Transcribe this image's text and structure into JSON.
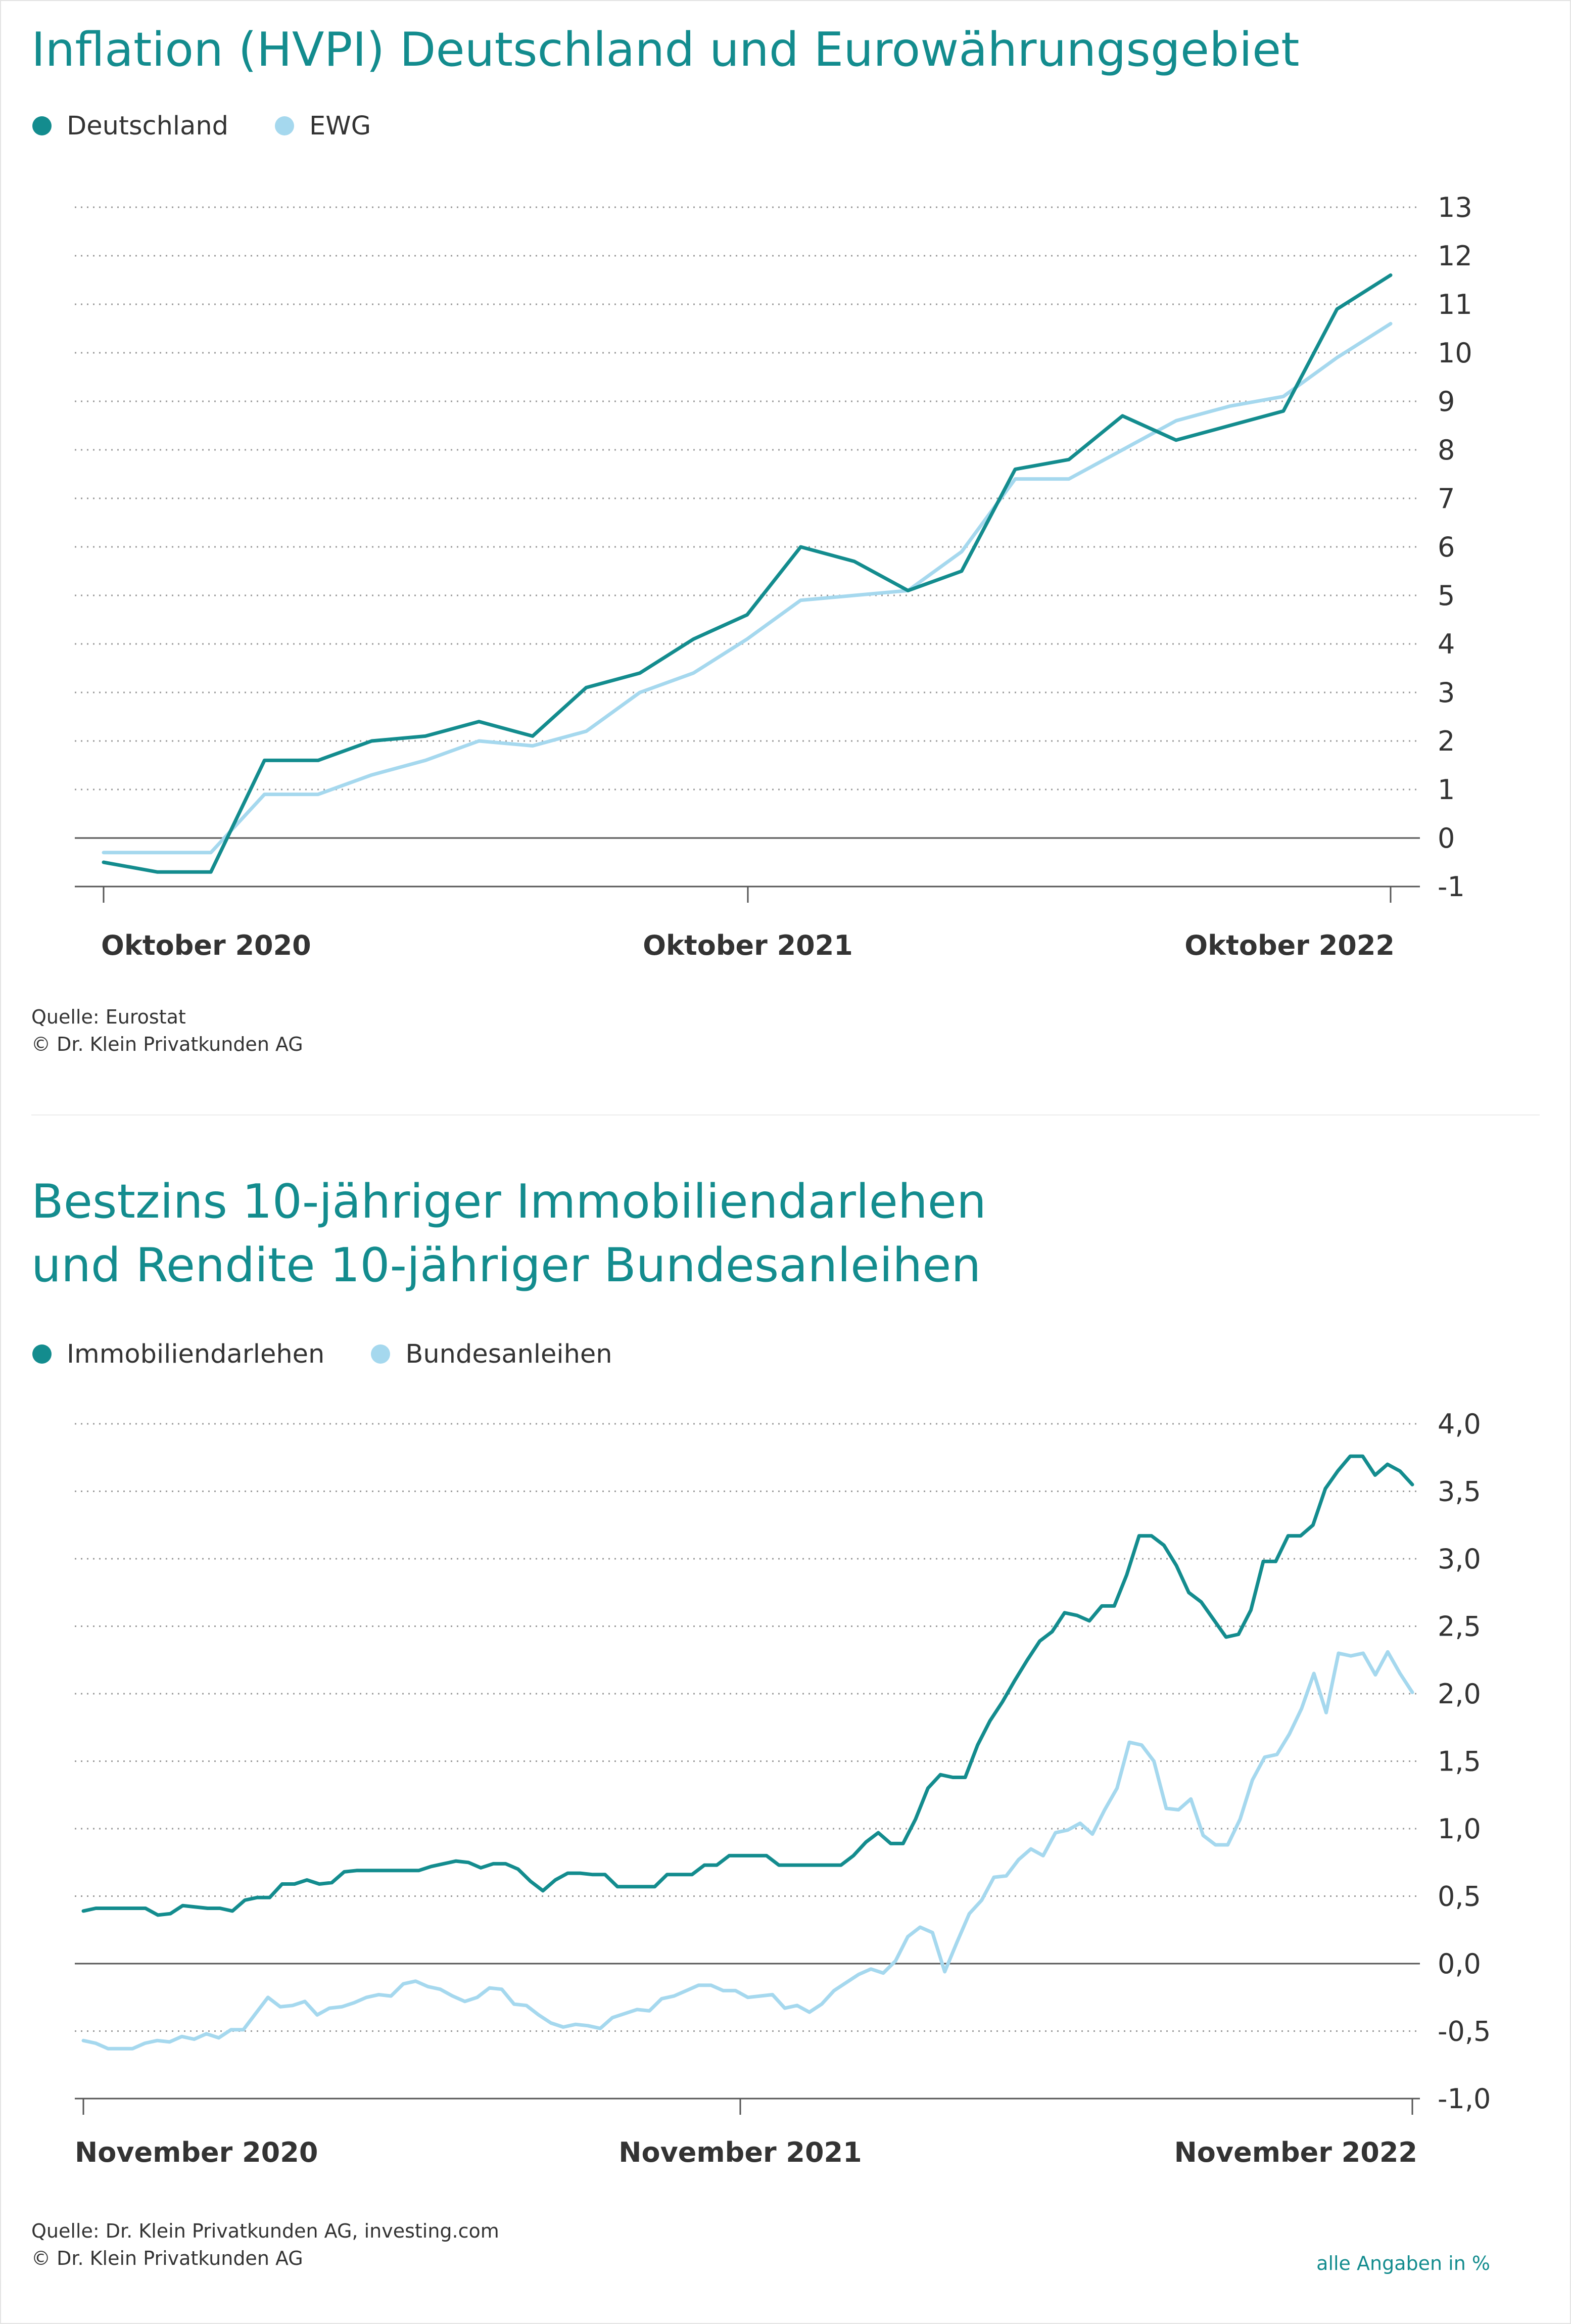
{
  "note": "alle Angaben in %",
  "colors": {
    "dark": "#138c8e",
    "light": "#a5d8ee",
    "grid": "#9a9a9a",
    "axis": "#555555"
  },
  "chart_data": [
    {
      "type": "line",
      "title": "Inflation (HVPI) Deutschland und Eurowährungsgebiet",
      "xlabel": "",
      "ylabel": "",
      "ylim": [
        -1,
        13
      ],
      "y_ticks": [
        "13",
        "12",
        "11",
        "10",
        "9",
        "8",
        "7",
        "6",
        "5",
        "4",
        "3",
        "2",
        "1",
        "0",
        "-1"
      ],
      "x_labels": [
        "Oktober 2020",
        "Oktober 2021",
        "Oktober 2022"
      ],
      "legend_position": "top-left",
      "grid": true,
      "source_lines": [
        "Quelle: Eurostat",
        "© Dr. Klein Privatkunden AG"
      ],
      "series": [
        {
          "name": "Deutschland",
          "color": "#138c8e",
          "values": [
            -0.5,
            -0.7,
            -0.7,
            1.6,
            1.6,
            2.0,
            2.1,
            2.4,
            2.1,
            3.1,
            3.4,
            4.1,
            4.6,
            6.0,
            5.7,
            5.1,
            5.5,
            7.6,
            7.8,
            8.7,
            8.2,
            8.5,
            8.8,
            10.9,
            11.6
          ]
        },
        {
          "name": "EWG",
          "color": "#a5d8ee",
          "values": [
            -0.3,
            -0.3,
            -0.3,
            0.9,
            0.9,
            1.3,
            1.6,
            2.0,
            1.9,
            2.2,
            3.0,
            3.4,
            4.1,
            4.9,
            5.0,
            5.1,
            5.9,
            7.4,
            7.4,
            8.0,
            8.6,
            8.9,
            9.1,
            9.9,
            10.6
          ]
        }
      ]
    },
    {
      "type": "line",
      "title": "Bestzins 10-jähriger Immobiliendarlehen und Rendite 10-jähriger Bundesanleihen",
      "title_lines": [
        "Bestzins 10-jähriger Immobiliendarlehen",
        "und Rendite 10-jähriger Bundesanleihen"
      ],
      "xlabel": "",
      "ylabel": "",
      "ylim": [
        -1.0,
        4.0
      ],
      "y_ticks": [
        "4,0",
        "3,5",
        "3,0",
        "2,5",
        "2,0",
        "1,5",
        "1,0",
        "0,5",
        "0,0",
        "-0,5",
        "-1,0"
      ],
      "x_labels": [
        "November 2020",
        "November 2021",
        "November 2022"
      ],
      "legend_position": "top-left",
      "grid": true,
      "source_lines": [
        "Quelle: Dr. Klein Privatkunden AG, investing.com",
        "© Dr. Klein Privatkunden AG"
      ],
      "series": [
        {
          "name": "Immobiliendarlehen",
          "color": "#138c8e",
          "values": [
            0.39,
            0.41,
            0.41,
            0.41,
            0.41,
            0.41,
            0.36,
            0.37,
            0.43,
            0.42,
            0.41,
            0.41,
            0.39,
            0.47,
            0.49,
            0.49,
            0.59,
            0.59,
            0.62,
            0.59,
            0.6,
            0.68,
            0.69,
            0.69,
            0.69,
            0.69,
            0.69,
            0.69,
            0.72,
            0.74,
            0.76,
            0.75,
            0.71,
            0.74,
            0.74,
            0.7,
            0.61,
            0.54,
            0.62,
            0.67,
            0.67,
            0.66,
            0.66,
            0.57,
            0.57,
            0.57,
            0.57,
            0.66,
            0.66,
            0.66,
            0.73,
            0.73,
            0.8,
            0.8,
            0.8,
            0.8,
            0.73,
            0.73,
            0.73,
            0.73,
            0.73,
            0.73,
            0.8,
            0.9,
            0.97,
            0.89,
            0.89,
            1.07,
            1.3,
            1.4,
            1.38,
            1.38,
            1.62,
            1.8,
            1.94,
            2.1,
            2.25,
            2.39,
            2.46,
            2.6,
            2.58,
            2.54,
            2.65,
            2.65,
            2.88,
            3.17,
            3.17,
            3.1,
            2.95,
            2.75,
            2.68,
            2.55,
            2.42,
            2.44,
            2.62,
            2.98,
            2.98,
            3.17,
            3.17,
            3.25,
            3.52,
            3.65,
            3.76,
            3.76,
            3.62,
            3.7,
            3.65,
            3.55
          ]
        },
        {
          "name": "Bundesanleihen",
          "color": "#a5d8ee",
          "values": [
            -0.57,
            -0.59,
            -0.63,
            -0.63,
            -0.63,
            -0.59,
            -0.57,
            -0.58,
            -0.54,
            -0.56,
            -0.52,
            -0.55,
            -0.49,
            -0.49,
            -0.37,
            -0.25,
            -0.32,
            -0.31,
            -0.28,
            -0.38,
            -0.33,
            -0.32,
            -0.29,
            -0.25,
            -0.23,
            -0.24,
            -0.15,
            -0.13,
            -0.17,
            -0.19,
            -0.24,
            -0.28,
            -0.25,
            -0.18,
            -0.19,
            -0.3,
            -0.31,
            -0.38,
            -0.44,
            -0.47,
            -0.45,
            -0.46,
            -0.48,
            -0.4,
            -0.37,
            -0.34,
            -0.35,
            -0.26,
            -0.24,
            -0.2,
            -0.16,
            -0.16,
            -0.2,
            -0.2,
            -0.25,
            -0.24,
            -0.23,
            -0.33,
            -0.31,
            -0.36,
            -0.3,
            -0.2,
            -0.14,
            -0.08,
            -0.04,
            -0.07,
            0.02,
            0.2,
            0.27,
            0.23,
            -0.06,
            0.16,
            0.37,
            0.47,
            0.64,
            0.65,
            0.77,
            0.85,
            0.8,
            0.97,
            0.99,
            1.04,
            0.96,
            1.14,
            1.3,
            1.64,
            1.62,
            1.5,
            1.15,
            1.14,
            1.22,
            0.95,
            0.88,
            0.88,
            1.07,
            1.36,
            1.53,
            1.55,
            1.7,
            1.89,
            2.15,
            1.86,
            2.3,
            2.28,
            2.3,
            2.14,
            2.31,
            2.15,
            2.01
          ]
        }
      ]
    }
  ]
}
